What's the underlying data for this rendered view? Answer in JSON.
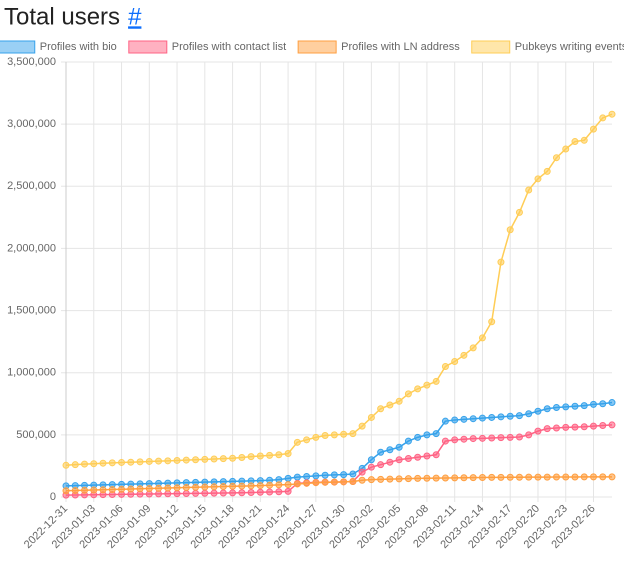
{
  "chart_data": {
    "type": "line",
    "title": "Total users",
    "title_link": "#",
    "categories": [
      "2022-12-31",
      null,
      null,
      "2023-01-03",
      null,
      null,
      "2023-01-06",
      null,
      null,
      "2023-01-09",
      null,
      null,
      "2023-01-12",
      null,
      null,
      "2023-01-15",
      null,
      null,
      "2023-01-18",
      null,
      null,
      "2023-01-21",
      null,
      null,
      "2023-01-24",
      null,
      null,
      "2023-01-27",
      null,
      null,
      "2023-01-30",
      null,
      null,
      "2023-02-02",
      null,
      null,
      "2023-02-05",
      null,
      null,
      "2023-02-08",
      null,
      null,
      "2023-02-11",
      null,
      null,
      "2023-02-14",
      null,
      null,
      "2023-02-17",
      null,
      null,
      "2023-02-20",
      null,
      null,
      "2023-02-23",
      null,
      null,
      "2023-02-26",
      null,
      null
    ],
    "series": [
      {
        "name": "Profiles with bio",
        "color": "#36a2eb",
        "values": [
          90000,
          92000,
          94000,
          96000,
          98000,
          100000,
          102000,
          104000,
          106000,
          108000,
          110000,
          112000,
          114000,
          116000,
          118000,
          120000,
          122000,
          124000,
          126000,
          128000,
          130000,
          132000,
          135000,
          140000,
          150000,
          160000,
          165000,
          170000,
          175000,
          178000,
          180000,
          185000,
          230000,
          300000,
          360000,
          380000,
          400000,
          450000,
          480000,
          500000,
          510000,
          610000,
          620000,
          625000,
          630000,
          635000,
          640000,
          645000,
          650000,
          655000,
          670000,
          690000,
          710000,
          720000,
          725000,
          730000,
          735000,
          745000,
          750000,
          760000
        ]
      },
      {
        "name": "Profiles with contact list",
        "color": "#ff6384",
        "values": [
          15000,
          16000,
          17000,
          18000,
          19000,
          20000,
          21000,
          22000,
          23000,
          24000,
          25000,
          26000,
          27000,
          28000,
          29000,
          30000,
          31000,
          32000,
          33000,
          34000,
          36000,
          38000,
          40000,
          42000,
          45000,
          110000,
          115000,
          118000,
          120000,
          120000,
          122000,
          125000,
          200000,
          240000,
          260000,
          280000,
          300000,
          310000,
          320000,
          330000,
          340000,
          450000,
          460000,
          465000,
          470000,
          472000,
          475000,
          478000,
          480000,
          483000,
          500000,
          530000,
          550000,
          555000,
          560000,
          562000,
          565000,
          570000,
          575000,
          580000
        ]
      },
      {
        "name": "Profiles with LN address",
        "color": "#ff9f40",
        "values": [
          50000,
          52000,
          54000,
          56000,
          58000,
          60000,
          62000,
          64000,
          66000,
          68000,
          70000,
          72000,
          74000,
          76000,
          78000,
          80000,
          82000,
          84000,
          86000,
          88000,
          90000,
          92000,
          95000,
          98000,
          100000,
          105000,
          110000,
          115000,
          118000,
          120000,
          122000,
          125000,
          135000,
          140000,
          142000,
          144000,
          146000,
          148000,
          150000,
          151000,
          152000,
          153000,
          154000,
          155000,
          156000,
          157000,
          158000,
          158000,
          159000,
          159000,
          160000,
          160000,
          160000,
          161000,
          161000,
          161000,
          162000,
          162000,
          162000,
          162000
        ]
      },
      {
        "name": "Pubkeys writing events",
        "color": "#ffcd56",
        "values": [
          255000,
          260000,
          265000,
          268000,
          272000,
          275000,
          278000,
          280000,
          283000,
          286000,
          289000,
          291000,
          294000,
          297000,
          300000,
          303000,
          306000,
          309000,
          312000,
          318000,
          325000,
          330000,
          335000,
          340000,
          350000,
          440000,
          460000,
          480000,
          495000,
          500000,
          505000,
          510000,
          570000,
          640000,
          710000,
          740000,
          770000,
          830000,
          870000,
          900000,
          930000,
          1050000,
          1090000,
          1140000,
          1200000,
          1280000,
          1410000,
          1890000,
          2150000,
          2290000,
          2470000,
          2560000,
          2620000,
          2730000,
          2800000,
          2860000,
          2870000,
          2960000,
          3050000,
          3080000
        ]
      }
    ],
    "ylim": [
      0,
      3500000
    ],
    "yticks": [
      0,
      {
        "value": 500000,
        "label": "500,000"
      },
      {
        "value": 1000000,
        "label": "1,000,000"
      },
      {
        "value": 1500000,
        "label": "1,500,000"
      },
      {
        "value": 2000000,
        "label": "2,000,000"
      },
      {
        "value": 2500000,
        "label": "2,500,000"
      },
      {
        "value": 3000000,
        "label": "3,000,000"
      },
      {
        "value": 3500000,
        "label": "3,500,000"
      }
    ],
    "grid": true,
    "legend": "top"
  }
}
